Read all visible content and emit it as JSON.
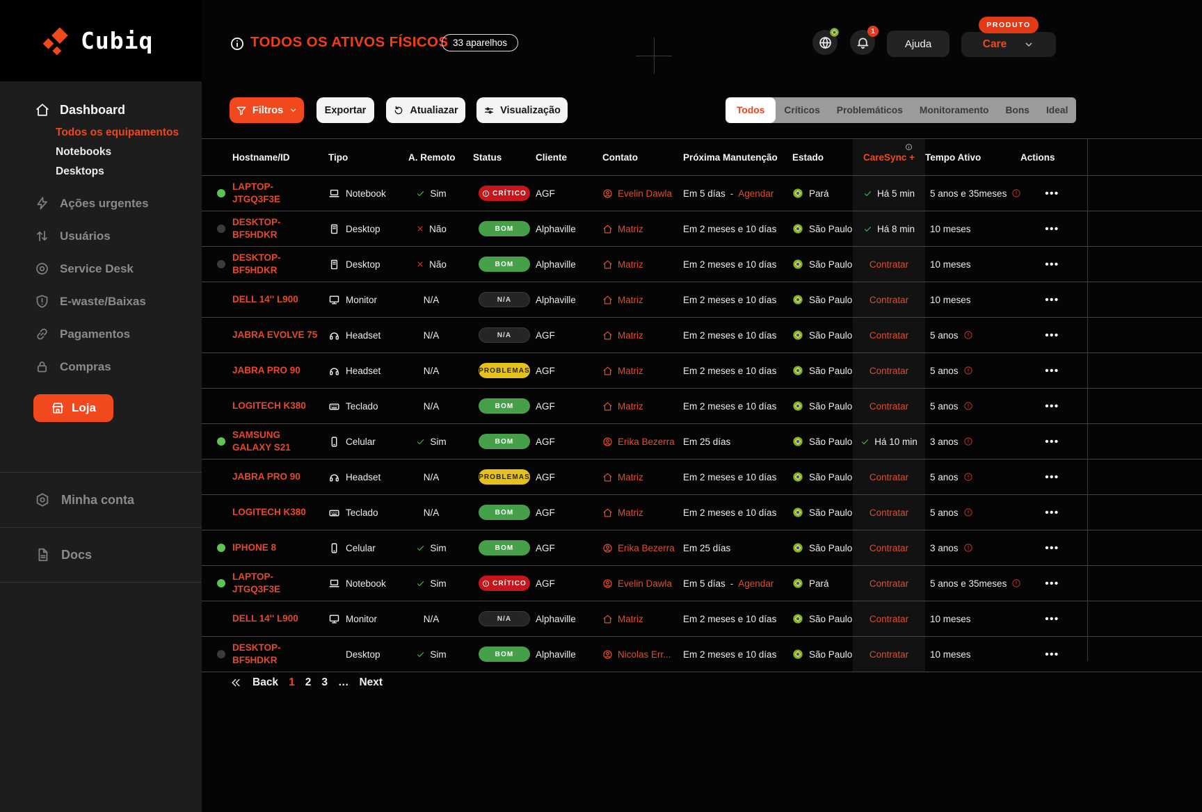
{
  "brand": {
    "name": "Cubiq",
    "logo_icon": "cubiq-logo-icon"
  },
  "topbar": {
    "title": "TODOS OS ATIVOS FÍSICOS",
    "title_icon": "info-icon",
    "count_badge": "33 aparelhos",
    "help_label": "Ajuda",
    "product_tag": "PRODUTO",
    "product_name": "Care",
    "notification_count": "1",
    "globe_icon": "globe-icon",
    "globe_badge_icon": "brazil-flag-icon",
    "bell_icon": "bell-icon"
  },
  "sidebar": {
    "items": [
      {
        "icon": "home-icon",
        "label": "Dashboard",
        "style": "primary"
      },
      {
        "label": "Todos os equipamentos",
        "style": "sub",
        "active": true
      },
      {
        "label": "Notebooks",
        "style": "sub"
      },
      {
        "label": "Desktops",
        "style": "sub"
      },
      {
        "icon": "bolt-icon",
        "label": "Ações urgentes",
        "style": "muted"
      },
      {
        "icon": "arrows-updown-icon",
        "label": "Usuários",
        "style": "muted"
      },
      {
        "icon": "target-icon",
        "label": "Service Desk",
        "style": "muted"
      },
      {
        "icon": "shield-icon",
        "label": "E-waste/Baixas",
        "style": "muted"
      },
      {
        "icon": "chain-icon",
        "label": "Pagamentos",
        "style": "muted"
      },
      {
        "icon": "lock-icon",
        "label": "Compras",
        "style": "muted"
      },
      {
        "icon": "store-icon",
        "label": "Loja",
        "style": "cta"
      },
      {
        "style": "divider"
      },
      {
        "icon": "hex-badge-icon",
        "label": "Minha conta",
        "style": "account"
      },
      {
        "style": "divider"
      },
      {
        "icon": "doc-icon",
        "label": "Docs",
        "style": "account"
      },
      {
        "style": "divider"
      }
    ]
  },
  "toolbar": {
    "filters_label": "Filtros",
    "export_label": "Exportar",
    "refresh_label": "Atualiazar",
    "view_label": "Visualização"
  },
  "tabs": [
    {
      "label": "Todos",
      "active": true
    },
    {
      "label": "Críticos"
    },
    {
      "label": "Problemáticos"
    },
    {
      "label": "Monitoramento"
    },
    {
      "label": "Bons"
    },
    {
      "label": "Ideal"
    }
  ],
  "table": {
    "columns": [
      "Hostname/ID",
      "Tipo",
      "A. Remoto",
      "Status",
      "Cliente",
      "Contato",
      "Próxima Manutenção",
      "Estado",
      "CareSync +",
      "Tempo Ativo",
      "Actions"
    ],
    "caresync_info_icon": "info-icon",
    "state_icon": "brazil-flag-icon",
    "actions_label": "•••",
    "rows": [
      {
        "dot": "green",
        "hostname": "LAPTOP-JTGQ3F3E",
        "type": "Notebook",
        "type_icon": "laptop-icon",
        "remote": "Sim",
        "remote_kind": "yes",
        "status": "CRÍTICO",
        "status_kind": "critical",
        "client": "AGF",
        "contact": "Evelin Dawla",
        "contact_icon": "person-icon",
        "maintenance": "Em 5 días",
        "maintenance_link": "Agendar",
        "state": "Pará",
        "caresync": "Há 5 min",
        "caresync_kind": "ok",
        "uptime": "5 anos e 35meses",
        "uptime_warn": true
      },
      {
        "dot": "gray",
        "hostname": "DESKTOP-BF5HDKR",
        "type": "Desktop",
        "type_icon": "tower-icon",
        "remote": "Não",
        "remote_kind": "no",
        "status": "BOM",
        "status_kind": "good",
        "client": "Alphaville",
        "contact": "Matriz",
        "contact_icon": "house-icon",
        "maintenance": "Em 2 meses e 10 días",
        "state": "São Paulo",
        "caresync": "Há 8 min",
        "caresync_kind": "ok",
        "uptime": "10 meses",
        "uptime_warn": false
      },
      {
        "dot": "gray",
        "hostname": "DESKTOP-BF5HDKR",
        "type": "Desktop",
        "type_icon": "tower-icon",
        "remote": "Não",
        "remote_kind": "no",
        "status": "BOM",
        "status_kind": "good",
        "client": "Alphaville",
        "contact": "Matriz",
        "contact_icon": "house-icon",
        "maintenance": "Em 2 meses e 10 días",
        "state": "São Paulo",
        "caresync": "Contratar",
        "caresync_kind": "link",
        "uptime": "10 meses",
        "uptime_warn": false
      },
      {
        "dot": "none",
        "hostname": "DELL 14'' L900",
        "type": "Monitor",
        "type_icon": "monitor-icon",
        "remote": "N/A",
        "remote_kind": "na",
        "status": "N/A",
        "status_kind": "na",
        "client": "Alphaville",
        "contact": "Matriz",
        "contact_icon": "house-icon",
        "maintenance": "Em 2 meses e 10 días",
        "state": "São Paulo",
        "caresync": "Contratar",
        "caresync_kind": "link",
        "uptime": "10 meses",
        "uptime_warn": false
      },
      {
        "dot": "none",
        "hostname": "JABRA EVOLVE 75",
        "type": "Headset",
        "type_icon": "headset-icon",
        "remote": "N/A",
        "remote_kind": "na",
        "status": "N/A",
        "status_kind": "na",
        "client": "AGF",
        "contact": "Matriz",
        "contact_icon": "house-icon",
        "maintenance": "Em 2 meses e 10 días",
        "state": "São Paulo",
        "caresync": "Contratar",
        "caresync_kind": "link",
        "uptime": "5 anos",
        "uptime_warn": true
      },
      {
        "dot": "none",
        "hostname": "JABRA PRO 90",
        "type": "Headset",
        "type_icon": "headset-icon",
        "remote": "N/A",
        "remote_kind": "na",
        "status": "PROBLEMAS",
        "status_kind": "problem",
        "client": "AGF",
        "contact": "Matriz",
        "contact_icon": "house-icon",
        "maintenance": "Em 2 meses e 10 días",
        "state": "São Paulo",
        "caresync": "Contratar",
        "caresync_kind": "link",
        "uptime": "5 anos",
        "uptime_warn": true
      },
      {
        "dot": "none",
        "hostname": "LOGITECH K380",
        "type": "Teclado",
        "type_icon": "keyboard-icon",
        "remote": "N/A",
        "remote_kind": "na",
        "status": "BOM",
        "status_kind": "good",
        "client": "AGF",
        "contact": "Matriz",
        "contact_icon": "house-icon",
        "maintenance": "Em 2 meses e 10 días",
        "state": "São Paulo",
        "caresync": "Contratar",
        "caresync_kind": "link",
        "uptime": "5 anos",
        "uptime_warn": true
      },
      {
        "dot": "green",
        "hostname": "SAMSUNG GALAXY S21",
        "type": "Celular",
        "type_icon": "phone-icon",
        "remote": "Sim",
        "remote_kind": "yes",
        "status": "BOM",
        "status_kind": "good",
        "client": "AGF",
        "contact": "Erika Bezerra",
        "contact_icon": "person-icon",
        "maintenance": "Em 25 días",
        "state": "São Paulo",
        "caresync": "Há 10 min",
        "caresync_kind": "ok",
        "uptime": "3 anos",
        "uptime_warn": true
      },
      {
        "dot": "none",
        "hostname": "JABRA PRO 90",
        "type": "Headset",
        "type_icon": "headset-icon",
        "remote": "N/A",
        "remote_kind": "na",
        "status": "PROBLEMAS",
        "status_kind": "problem",
        "client": "AGF",
        "contact": "Matriz",
        "contact_icon": "house-icon",
        "maintenance": "Em 2 meses e 10 días",
        "state": "São Paulo",
        "caresync": "Contratar",
        "caresync_kind": "link",
        "uptime": "5 anos",
        "uptime_warn": true
      },
      {
        "dot": "none",
        "hostname": "LOGITECH K380",
        "type": "Teclado",
        "type_icon": "keyboard-icon",
        "remote": "N/A",
        "remote_kind": "na",
        "status": "BOM",
        "status_kind": "good",
        "client": "AGF",
        "contact": "Matriz",
        "contact_icon": "house-icon",
        "maintenance": "Em 2 meses e 10 días",
        "state": "São Paulo",
        "caresync": "Contratar",
        "caresync_kind": "link",
        "uptime": "5 anos",
        "uptime_warn": true
      },
      {
        "dot": "green",
        "hostname": "IPHONE 8",
        "type": "Celular",
        "type_icon": "phone-icon",
        "remote": "Sim",
        "remote_kind": "yes",
        "status": "BOM",
        "status_kind": "good",
        "client": "AGF",
        "contact": "Erika Bezerra",
        "contact_icon": "person-icon",
        "maintenance": "Em 25 días",
        "state": "São Paulo",
        "caresync": "Contratar",
        "caresync_kind": "link",
        "uptime": "3 anos",
        "uptime_warn": true
      },
      {
        "dot": "green",
        "hostname": "LAPTOP-JTGQ3F3E",
        "type": "Notebook",
        "type_icon": "laptop-icon",
        "remote": "Sim",
        "remote_kind": "yes",
        "status": "CRÍTICO",
        "status_kind": "critical",
        "client": "AGF",
        "contact": "Evelin Dawla",
        "contact_icon": "person-icon",
        "maintenance": "Em 5 días",
        "maintenance_link": "Agendar",
        "state": "Pará",
        "caresync": "Contratar",
        "caresync_kind": "link",
        "uptime": "5 anos e 35meses",
        "uptime_warn": true
      },
      {
        "dot": "none",
        "hostname": "DELL 14'' L900",
        "type": "Monitor",
        "type_icon": "monitor-icon",
        "remote": "N/A",
        "remote_kind": "na",
        "status": "N/A",
        "status_kind": "na",
        "client": "Alphaville",
        "contact": "Matriz",
        "contact_icon": "house-icon",
        "maintenance": "Em 2 meses e 10 días",
        "state": "São Paulo",
        "caresync": "Contratar",
        "caresync_kind": "link",
        "uptime": "10 meses",
        "uptime_warn": false
      },
      {
        "dot": "gray",
        "hostname": "DESKTOP-BF5HDKR",
        "type": "Desktop",
        "type_icon": null,
        "remote": "Sim",
        "remote_kind": "yes",
        "status": "BOM",
        "status_kind": "good",
        "client": "Alphaville",
        "contact": "Nicolas Err...",
        "contact_icon": "person-icon",
        "maintenance": "Em 2 meses e 10 días",
        "state": "São Paulo",
        "caresync": "Contratar",
        "caresync_kind": "link",
        "uptime": "10 meses",
        "uptime_warn": false
      }
    ]
  },
  "pagination": {
    "prev_icon": "double-chevron-left-icon",
    "back_label": "Back",
    "pages": [
      "1",
      "2",
      "3",
      "…"
    ],
    "active_page": "1",
    "next_label": "Next"
  },
  "colors": {
    "accent": "#ee4517",
    "link": "#dd4e2d",
    "status_critical": "#c6151b",
    "status_good": "#46a049",
    "status_problem": "#e4c11c",
    "status_na": "#252525",
    "dot_active": "#5ec255",
    "sidebar_bg": "#1d1d1d",
    "main_bg": "#050505",
    "tabstrip_bg": "#9b9b9b"
  }
}
